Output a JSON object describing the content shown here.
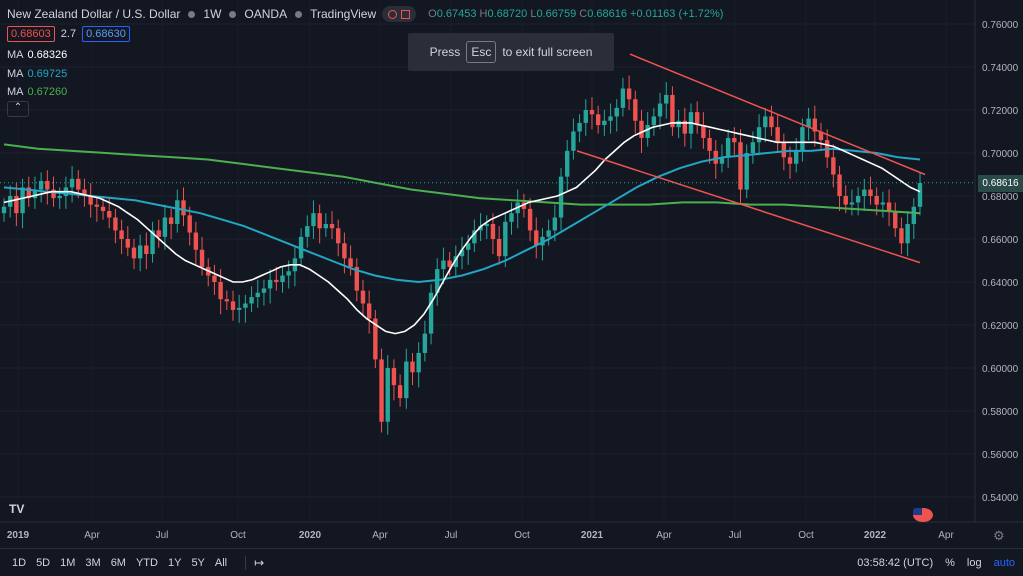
{
  "header": {
    "symbol": "New Zealand Dollar / U.S. Dollar",
    "interval": "1W",
    "exchange": "OANDA",
    "source": "TradingView",
    "ohlc": {
      "o_label": "O",
      "o": "0.67453",
      "h_label": "H",
      "h": "0.68720",
      "l_label": "L",
      "l": "0.66759",
      "c_label": "C",
      "c": "0.68616",
      "change": "+0.01163 (+1.72%)"
    }
  },
  "quote": {
    "bid": "0.68603",
    "spread": "2.7",
    "ask": "0.68630"
  },
  "indicators": [
    {
      "label": "MA",
      "value": "0.68326",
      "color": "#ffffff"
    },
    {
      "label": "MA",
      "value": "0.69725",
      "color": "#22ab94"
    },
    {
      "label": "MA",
      "value": "0.67260",
      "color": "#4caf50"
    }
  ],
  "collapse_icon": "chevron-up-icon",
  "esc_banner": {
    "press": "Press",
    "key": "Esc",
    "rest": "to exit full screen"
  },
  "last_price": "0.68616",
  "colors": {
    "up": "#26a69a",
    "down": "#ef5350",
    "ma1": "#ffffff",
    "ma2": "#22a6c4",
    "ma3": "#4caf50",
    "trendline": "#ef5350",
    "background": "#131722"
  },
  "bottom_bar": {
    "timeframes": [
      "1D",
      "5D",
      "1M",
      "3M",
      "6M",
      "YTD",
      "1Y",
      "5Y",
      "All"
    ],
    "range_icon": "calendar-range-icon",
    "clock": "03:58:42 (UTC)",
    "percent": "%",
    "log": "log",
    "auto": "auto"
  },
  "chart_data": {
    "type": "candlestick",
    "title": "New Zealand Dollar / U.S. Dollar",
    "y_ticks": [
      "0.76000",
      "0.74000",
      "0.72000",
      "0.70000",
      "0.68000",
      "0.66000",
      "0.64000",
      "0.62000",
      "0.60000",
      "0.58000",
      "0.56000",
      "0.54000"
    ],
    "ylim": [
      0.532,
      0.765
    ],
    "x_labels": [
      "2019",
      "Apr",
      "Jul",
      "Oct",
      "2020",
      "Apr",
      "Jul",
      "Oct",
      "2021",
      "Apr",
      "Jul",
      "Oct",
      "2022",
      "Apr"
    ],
    "closes": [
      0.675,
      0.68,
      0.672,
      0.684,
      0.679,
      0.683,
      0.687,
      0.683,
      0.679,
      0.68,
      0.684,
      0.688,
      0.683,
      0.68,
      0.676,
      0.675,
      0.673,
      0.67,
      0.664,
      0.66,
      0.656,
      0.651,
      0.657,
      0.653,
      0.664,
      0.661,
      0.67,
      0.667,
      0.678,
      0.671,
      0.663,
      0.655,
      0.647,
      0.643,
      0.64,
      0.632,
      0.631,
      0.627,
      0.628,
      0.63,
      0.633,
      0.635,
      0.637,
      0.641,
      0.64,
      0.643,
      0.645,
      0.651,
      0.661,
      0.666,
      0.672,
      0.665,
      0.667,
      0.665,
      0.658,
      0.651,
      0.647,
      0.636,
      0.63,
      0.623,
      0.604,
      0.575,
      0.6,
      0.592,
      0.586,
      0.603,
      0.598,
      0.607,
      0.616,
      0.635,
      0.646,
      0.65,
      0.647,
      0.652,
      0.655,
      0.658,
      0.664,
      0.666,
      0.667,
      0.66,
      0.652,
      0.668,
      0.672,
      0.677,
      0.674,
      0.664,
      0.657,
      0.661,
      0.664,
      0.67,
      0.689,
      0.701,
      0.71,
      0.714,
      0.72,
      0.718,
      0.713,
      0.715,
      0.717,
      0.721,
      0.73,
      0.725,
      0.715,
      0.707,
      0.713,
      0.717,
      0.723,
      0.727,
      0.712,
      0.715,
      0.709,
      0.719,
      0.713,
      0.707,
      0.701,
      0.695,
      0.698,
      0.707,
      0.705,
      0.683,
      0.7,
      0.705,
      0.712,
      0.717,
      0.712,
      0.705,
      0.698,
      0.695,
      0.701,
      0.712,
      0.716,
      0.71,
      0.706,
      0.698,
      0.69,
      0.68,
      0.676,
      0.677,
      0.68,
      0.683,
      0.68,
      0.676,
      0.677,
      0.673,
      0.665,
      0.658,
      0.667,
      0.675,
      0.686
    ],
    "ma_fast": [
      0.677,
      0.678,
      0.679,
      0.68,
      0.681,
      0.682,
      0.682,
      0.682,
      0.681,
      0.68,
      0.679,
      0.677,
      0.675,
      0.672,
      0.669,
      0.665,
      0.661,
      0.657,
      0.653,
      0.65,
      0.648,
      0.646,
      0.644,
      0.642,
      0.64,
      0.64,
      0.641,
      0.643,
      0.645,
      0.647,
      0.648,
      0.648,
      0.646,
      0.643,
      0.64,
      0.636,
      0.632,
      0.627,
      0.623,
      0.62,
      0.617,
      0.616,
      0.617,
      0.62,
      0.625,
      0.632,
      0.64,
      0.648,
      0.655,
      0.661,
      0.666,
      0.669,
      0.671,
      0.673,
      0.675,
      0.677,
      0.678,
      0.679,
      0.68,
      0.682,
      0.684,
      0.688,
      0.692,
      0.697,
      0.701,
      0.705,
      0.708,
      0.71,
      0.712,
      0.713,
      0.714,
      0.714,
      0.714,
      0.713,
      0.712,
      0.711,
      0.71,
      0.709,
      0.708,
      0.707,
      0.706,
      0.705,
      0.705,
      0.705,
      0.705,
      0.705,
      0.704,
      0.703,
      0.701,
      0.699,
      0.697,
      0.695,
      0.693,
      0.69,
      0.687,
      0.684,
      0.682
    ],
    "ma_mid": [
      0.684,
      0.683,
      0.682,
      0.681,
      0.68,
      0.679,
      0.678,
      0.676,
      0.674,
      0.672,
      0.669,
      0.666,
      0.662,
      0.658,
      0.654,
      0.65,
      0.646,
      0.643,
      0.641,
      0.64,
      0.641,
      0.643,
      0.646,
      0.65,
      0.655,
      0.66,
      0.666,
      0.672,
      0.678,
      0.684,
      0.689,
      0.693,
      0.696,
      0.698,
      0.699,
      0.7,
      0.701,
      0.701,
      0.702,
      0.701,
      0.7,
      0.698,
      0.697
    ],
    "ma_slow": [
      0.704,
      0.702,
      0.701,
      0.7,
      0.699,
      0.698,
      0.697,
      0.695,
      0.693,
      0.691,
      0.689,
      0.686,
      0.683,
      0.681,
      0.679,
      0.678,
      0.677,
      0.676,
      0.676,
      0.676,
      0.677,
      0.677,
      0.676,
      0.676,
      0.675,
      0.674,
      0.673,
      0.672
    ],
    "trend_upper": [
      0.746,
      0.69
    ],
    "trend_lower": [
      0.701,
      0.649
    ]
  }
}
